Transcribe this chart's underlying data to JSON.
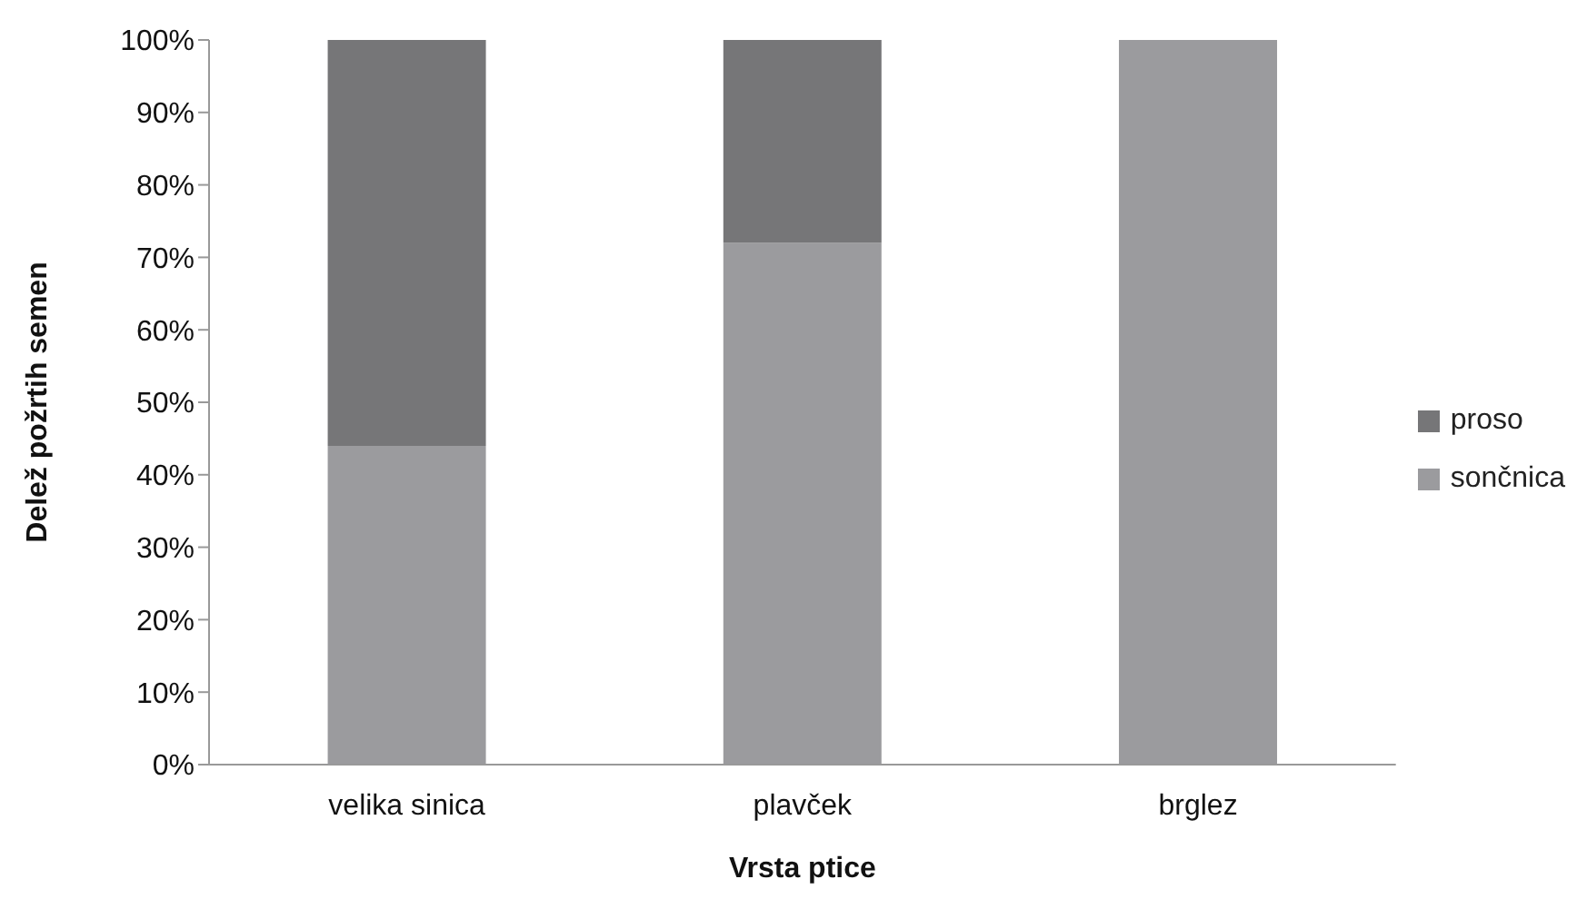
{
  "chart_data": {
    "type": "bar",
    "stacked": true,
    "xlabel": "Vrsta ptice",
    "ylabel": "Delež požrtih semen",
    "categories": [
      "velika sinica",
      "plavček",
      "brglez"
    ],
    "series": [
      {
        "name": "sončnica",
        "color": "#9b9b9e",
        "values": [
          44,
          72,
          100
        ]
      },
      {
        "name": "proso",
        "color": "#767678",
        "values": [
          56,
          28,
          0
        ]
      }
    ],
    "ylim": [
      0,
      100
    ],
    "yticks": [
      {
        "value": 0,
        "label": "0%"
      },
      {
        "value": 10,
        "label": "10%"
      },
      {
        "value": 20,
        "label": "20%"
      },
      {
        "value": 30,
        "label": "30%"
      },
      {
        "value": 40,
        "label": "40%"
      },
      {
        "value": 50,
        "label": "50%"
      },
      {
        "value": 60,
        "label": "60%"
      },
      {
        "value": 70,
        "label": "70%"
      },
      {
        "value": 80,
        "label": "80%"
      },
      {
        "value": 90,
        "label": "90%"
      },
      {
        "value": 100,
        "label": "100%"
      }
    ],
    "grid": false,
    "legend": "right"
  }
}
